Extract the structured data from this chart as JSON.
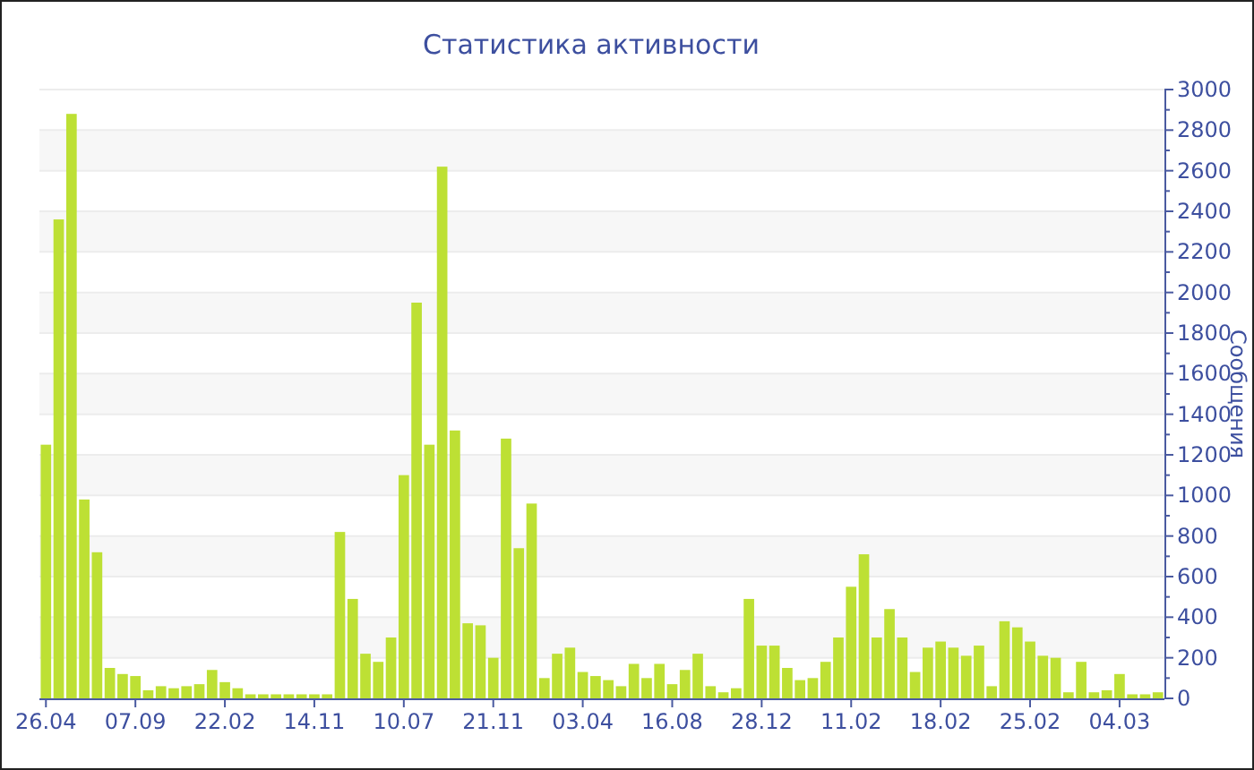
{
  "chart_data": {
    "type": "bar",
    "title": "Статистика активности",
    "ylabel": "Сообщения",
    "categories": [
      "26.04",
      null,
      null,
      null,
      null,
      null,
      null,
      "07.09",
      null,
      null,
      null,
      null,
      null,
      null,
      "22.02",
      null,
      null,
      null,
      null,
      null,
      null,
      "14.11",
      null,
      null,
      null,
      null,
      null,
      null,
      "10.07",
      null,
      null,
      null,
      null,
      null,
      null,
      "21.11",
      null,
      null,
      null,
      null,
      null,
      null,
      "03.04",
      null,
      null,
      null,
      null,
      null,
      null,
      "16.08",
      null,
      null,
      null,
      null,
      null,
      null,
      "28.12",
      null,
      null,
      null,
      null,
      null,
      null,
      "11.02",
      null,
      null,
      null,
      null,
      null,
      null,
      "18.02",
      null,
      null,
      null,
      null,
      null,
      null,
      "25.02",
      null,
      null,
      null,
      null,
      null,
      null,
      "04.03",
      null,
      null,
      null
    ],
    "values": [
      1250,
      2360,
      2880,
      980,
      720,
      150,
      120,
      110,
      40,
      60,
      50,
      60,
      70,
      140,
      80,
      50,
      20,
      20,
      20,
      20,
      20,
      20,
      20,
      820,
      490,
      220,
      180,
      300,
      1100,
      1950,
      1250,
      2620,
      1320,
      370,
      360,
      200,
      1280,
      740,
      960,
      100,
      220,
      250,
      130,
      110,
      90,
      60,
      170,
      100,
      170,
      70,
      140,
      220,
      60,
      30,
      50,
      490,
      260,
      260,
      150,
      90,
      100,
      180,
      300,
      550,
      710,
      300,
      440,
      300,
      130,
      250,
      280,
      250,
      210,
      260,
      60,
      380,
      350,
      280,
      210,
      200,
      30,
      180,
      30,
      40,
      120,
      20,
      20,
      30
    ],
    "color": "#bde034",
    "ylim": [
      0,
      3000
    ],
    "yticks": [
      0,
      {
        "value": 100,
        "label": null
      },
      200,
      {
        "value": 300,
        "label": null
      },
      400,
      {
        "value": 500,
        "label": null
      },
      600,
      {
        "value": 700,
        "label": null
      },
      800,
      {
        "value": 900,
        "label": null
      },
      1000,
      {
        "value": 1100,
        "label": null
      },
      1200,
      {
        "value": 1300,
        "label": null
      },
      1400,
      {
        "value": 1500,
        "label": null
      },
      1600,
      {
        "value": 1700,
        "label": null
      },
      1800,
      {
        "value": 1900,
        "label": null
      },
      2000,
      {
        "value": 2100,
        "label": null
      },
      2200,
      {
        "value": 2300,
        "label": null
      },
      2400,
      {
        "value": 2500,
        "label": null
      },
      2600,
      {
        "value": 2700,
        "label": null
      },
      2800,
      {
        "value": 2900,
        "label": null
      },
      3000
    ],
    "grid": "y"
  }
}
